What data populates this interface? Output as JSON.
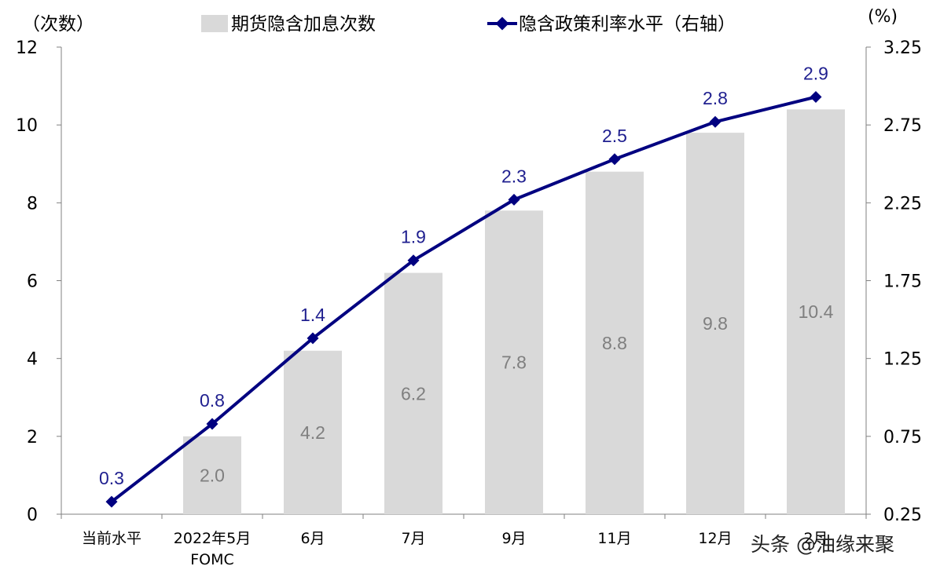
{
  "chart_data": {
    "type": "bar+line",
    "categories": [
      [
        "当前水平"
      ],
      [
        "2022年5月",
        "FOMC"
      ],
      [
        "6月"
      ],
      [
        "7月"
      ],
      [
        "9月"
      ],
      [
        "11月"
      ],
      [
        "12月"
      ],
      [
        "2月"
      ]
    ],
    "series": [
      {
        "name": "期货隐含加息次数",
        "kind": "bar",
        "axis": "left",
        "color": "#d9d9d9",
        "values": [
          null,
          2.0,
          4.2,
          6.2,
          7.8,
          8.8,
          9.8,
          10.4
        ],
        "labels": [
          "",
          "2.0",
          "4.2",
          "6.2",
          "7.8",
          "8.8",
          "9.8",
          "10.4"
        ]
      },
      {
        "name": "隐含政策利率水平（右轴）",
        "kind": "line",
        "marker": "diamond",
        "axis": "right",
        "color": "#000080",
        "values": [
          0.33,
          0.83,
          1.38,
          1.88,
          2.27,
          2.53,
          2.77,
          2.93
        ],
        "labels": [
          "0.3",
          "0.8",
          "1.4",
          "1.9",
          "2.3",
          "2.5",
          "2.8",
          "2.9"
        ]
      }
    ],
    "left_axis": {
      "unit_label": "（次数）",
      "ylim": [
        0,
        12
      ],
      "ticks": [
        "0",
        "2",
        "4",
        "6",
        "8",
        "10",
        "12"
      ]
    },
    "right_axis": {
      "unit_label": "(%)",
      "ylim": [
        0.25,
        3.25
      ],
      "ticks": [
        "0.25",
        "0.75",
        "1.25",
        "1.75",
        "2.25",
        "2.75",
        "3.25"
      ]
    },
    "legend_position": "top",
    "grid": false
  },
  "watermark": "头条 @油缘来聚"
}
